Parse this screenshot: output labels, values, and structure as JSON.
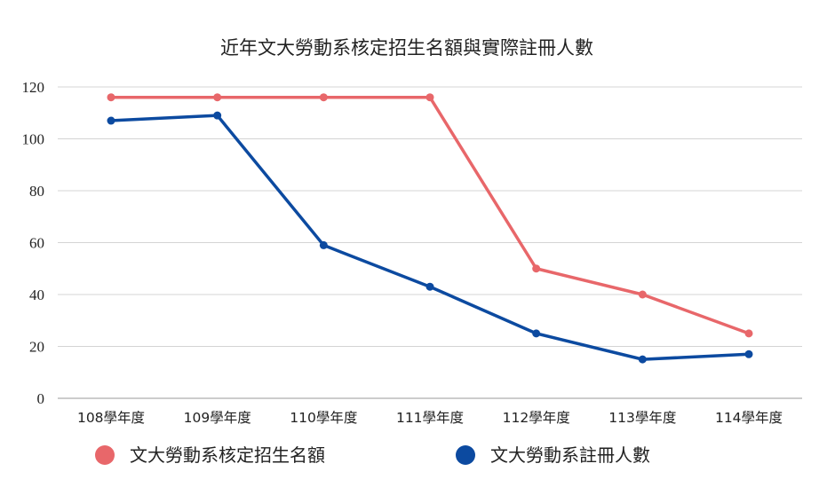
{
  "chart_data": {
    "type": "line",
    "title": "近年文大勞動系核定招生名額與實際註冊人數",
    "xlabel": "",
    "ylabel": "",
    "categories": [
      "108學年度",
      "109學年度",
      "110學年度",
      "111學年度",
      "112學年度",
      "113學年度",
      "114學年度"
    ],
    "ylim": [
      0,
      120
    ],
    "yticks": [
      0,
      20,
      40,
      60,
      80,
      100,
      120
    ],
    "grid": true,
    "legend_position": "bottom",
    "series": [
      {
        "name": "文大勞動系核定招生名額",
        "color": "#e8676a",
        "values": [
          116,
          116,
          116,
          116,
          50,
          40,
          25
        ]
      },
      {
        "name": "文大勞動系註冊人數",
        "color": "#0c4aa0",
        "values": [
          107,
          109,
          59,
          43,
          25,
          15,
          17
        ]
      }
    ]
  }
}
